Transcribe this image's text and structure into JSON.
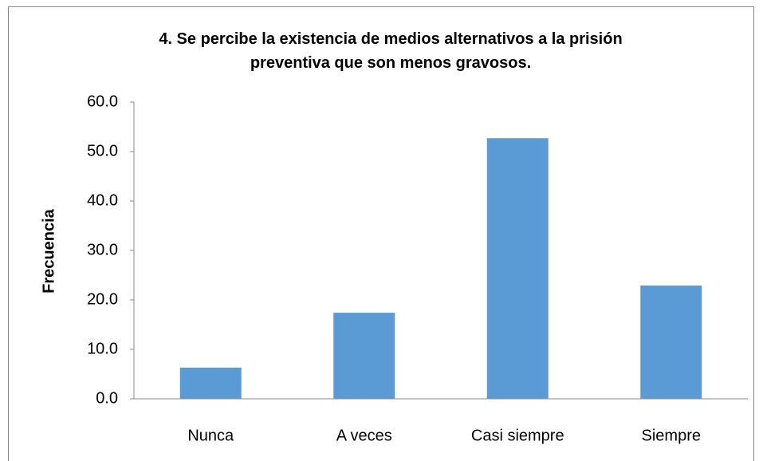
{
  "chart_data": {
    "type": "bar",
    "title": "4. Se percibe la existencia de medios alternativos a la prisión preventiva que son menos gravosos.",
    "y_label": "Frecuencia",
    "categories": [
      "Nunca",
      "A veces",
      "Casi siempre",
      "Siempre"
    ],
    "values": [
      6.3,
      17.4,
      52.7,
      22.9
    ],
    "color": "#5b9bd5",
    "ylim": [
      0,
      60
    ],
    "yticks": [
      {
        "value": 0,
        "label": "0.0"
      },
      {
        "value": 10,
        "label": "10.0"
      },
      {
        "value": 20,
        "label": "20.0"
      },
      {
        "value": 30,
        "label": "30.0"
      },
      {
        "value": 40,
        "label": "40.0"
      },
      {
        "value": 50,
        "label": "50.0"
      },
      {
        "value": 60,
        "label": "60.0"
      }
    ],
    "grid": false
  }
}
